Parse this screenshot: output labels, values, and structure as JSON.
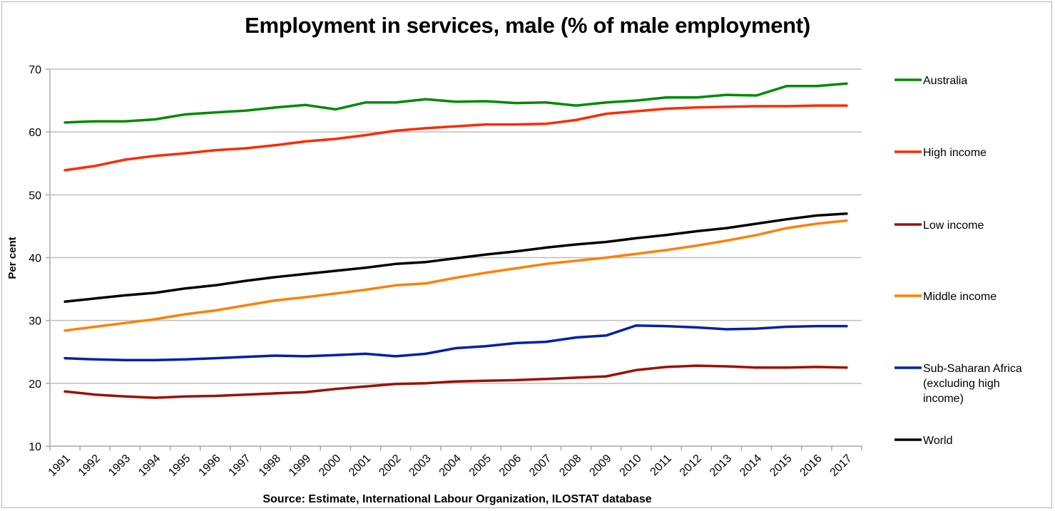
{
  "chart_data": {
    "type": "line",
    "title": "Employment in services, male (% of male employment)",
    "xlabel": "",
    "ylabel": "Per cent",
    "source": "Source: Estimate, International Labour Organization, ILOSTAT database",
    "ylim": [
      10,
      70
    ],
    "yticks": [
      10,
      20,
      30,
      40,
      50,
      60,
      70
    ],
    "grid": true,
    "legend_position": "right",
    "categories": [
      "1991",
      "1992",
      "1993",
      "1994",
      "1995",
      "1996",
      "1997",
      "1998",
      "1999",
      "2000",
      "2001",
      "2002",
      "2003",
      "2004",
      "2005",
      "2006",
      "2007",
      "2008",
      "2009",
      "2010",
      "2011",
      "2012",
      "2013",
      "2014",
      "2015",
      "2016",
      "2017"
    ],
    "series": [
      {
        "name": "Australia",
        "color": "#008a00",
        "values": [
          61.5,
          61.7,
          61.7,
          62.0,
          62.8,
          63.1,
          63.4,
          63.9,
          64.3,
          63.6,
          64.7,
          64.7,
          65.2,
          64.8,
          64.9,
          64.6,
          64.7,
          64.2,
          64.7,
          65.0,
          65.5,
          65.5,
          65.9,
          65.8,
          67.3,
          67.3,
          67.7
        ]
      },
      {
        "name": "High income",
        "color": "#ff2a00",
        "values": [
          53.9,
          54.6,
          55.6,
          56.2,
          56.6,
          57.1,
          57.4,
          57.9,
          58.5,
          58.9,
          59.5,
          60.2,
          60.6,
          60.9,
          61.2,
          61.2,
          61.3,
          61.9,
          62.9,
          63.3,
          63.7,
          63.9,
          64.0,
          64.1,
          64.1,
          64.2,
          64.2
        ]
      },
      {
        "name": "Low income",
        "color": "#9c1200",
        "values": [
          18.7,
          18.2,
          17.9,
          17.7,
          17.9,
          18.0,
          18.2,
          18.4,
          18.6,
          19.1,
          19.5,
          19.9,
          20.0,
          20.3,
          20.4,
          20.5,
          20.7,
          20.9,
          21.1,
          22.1,
          22.6,
          22.8,
          22.7,
          22.5,
          22.5,
          22.6,
          22.5
        ]
      },
      {
        "name": "Middle income",
        "color": "#ff8000",
        "values": [
          28.4,
          29.0,
          29.6,
          30.2,
          31.0,
          31.6,
          32.4,
          33.2,
          33.7,
          34.3,
          34.9,
          35.6,
          35.9,
          36.8,
          37.6,
          38.3,
          39.0,
          39.5,
          40.0,
          40.6,
          41.2,
          41.9,
          42.7,
          43.6,
          44.7,
          45.4,
          45.9
        ]
      },
      {
        "name": "Sub-Saharan Africa (excluding high income)",
        "legend_lines": [
          "Sub-Saharan Africa",
          "(excluding high",
          "income)"
        ],
        "color": "#0020a8",
        "values": [
          24.0,
          23.8,
          23.7,
          23.7,
          23.8,
          24.0,
          24.2,
          24.4,
          24.3,
          24.5,
          24.7,
          24.3,
          24.7,
          25.6,
          25.9,
          26.4,
          26.6,
          27.3,
          27.6,
          29.2,
          29.1,
          28.9,
          28.6,
          28.7,
          29.0,
          29.1,
          29.1
        ]
      },
      {
        "name": "World",
        "color": "#000000",
        "values": [
          33.0,
          33.5,
          34.0,
          34.4,
          35.1,
          35.6,
          36.3,
          36.9,
          37.4,
          37.9,
          38.4,
          39.0,
          39.3,
          39.9,
          40.5,
          41.0,
          41.6,
          42.1,
          42.5,
          43.1,
          43.6,
          44.2,
          44.7,
          45.4,
          46.1,
          46.7,
          47.0
        ]
      }
    ]
  }
}
